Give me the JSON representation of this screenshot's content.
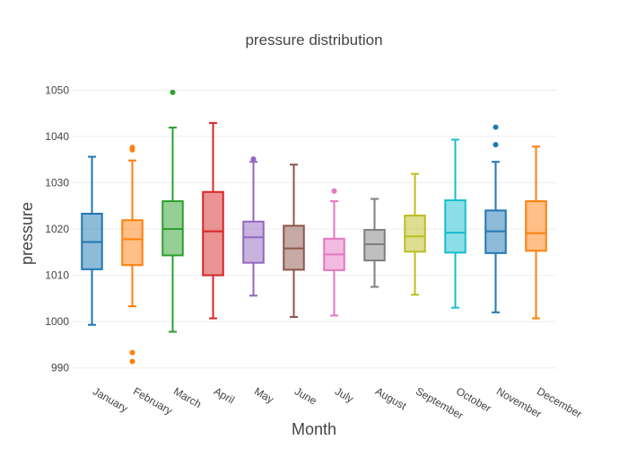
{
  "chart_data": {
    "type": "box",
    "title": "pressure distribution",
    "xlabel": "Month",
    "ylabel": "pressure",
    "ylim": [
      988,
      1052
    ],
    "yticks": [
      990,
      1000,
      1010,
      1020,
      1030,
      1040,
      1050
    ],
    "grid": true,
    "legend": "none",
    "categories": [
      "January",
      "February",
      "March",
      "April",
      "May",
      "June",
      "July",
      "August",
      "September",
      "October",
      "November",
      "December"
    ],
    "colors": [
      "#1f77b4",
      "#ff7f0e",
      "#2ca02c",
      "#d62728",
      "#9467bd",
      "#8c564b",
      "#e377c2",
      "#7f7f7f",
      "#bcbd22",
      "#17becf",
      "#1f77b4",
      "#ff7f0e"
    ],
    "boxes": [
      {
        "min": 999.3,
        "q1": 1011.3,
        "median": 1017.2,
        "q3": 1023.3,
        "max": 1035.6,
        "outliers": []
      },
      {
        "min": 1003.3,
        "q1": 1012.2,
        "median": 1017.8,
        "q3": 1021.9,
        "max": 1034.8,
        "outliers": [
          1037.6,
          1037.1,
          993.3,
          991.4
        ]
      },
      {
        "min": 997.8,
        "q1": 1014.3,
        "median": 1020.0,
        "q3": 1026.0,
        "max": 1041.9,
        "outliers": [
          1049.5
        ]
      },
      {
        "min": 1000.7,
        "q1": 1010.0,
        "median": 1019.5,
        "q3": 1028.0,
        "max": 1042.9,
        "outliers": []
      },
      {
        "min": 1005.6,
        "q1": 1012.7,
        "median": 1018.2,
        "q3": 1021.6,
        "max": 1034.5,
        "outliers": [
          1035.1
        ]
      },
      {
        "min": 1001.0,
        "q1": 1011.2,
        "median": 1015.8,
        "q3": 1020.7,
        "max": 1033.9,
        "outliers": []
      },
      {
        "min": 1001.3,
        "q1": 1011.1,
        "median": 1014.5,
        "q3": 1017.9,
        "max": 1026.0,
        "outliers": [
          1028.2
        ]
      },
      {
        "min": 1007.5,
        "q1": 1013.2,
        "median": 1016.7,
        "q3": 1019.8,
        "max": 1026.5,
        "outliers": []
      },
      {
        "min": 1005.8,
        "q1": 1015.1,
        "median": 1018.4,
        "q3": 1022.9,
        "max": 1031.9,
        "outliers": []
      },
      {
        "min": 1003.0,
        "q1": 1014.9,
        "median": 1019.2,
        "q3": 1026.2,
        "max": 1039.3,
        "outliers": []
      },
      {
        "min": 1002.0,
        "q1": 1014.8,
        "median": 1019.5,
        "q3": 1024.0,
        "max": 1034.5,
        "outliers": [
          1042.0,
          1038.2
        ]
      },
      {
        "min": 1000.7,
        "q1": 1015.3,
        "median": 1019.1,
        "q3": 1026.0,
        "max": 1037.8,
        "outliers": []
      }
    ]
  }
}
